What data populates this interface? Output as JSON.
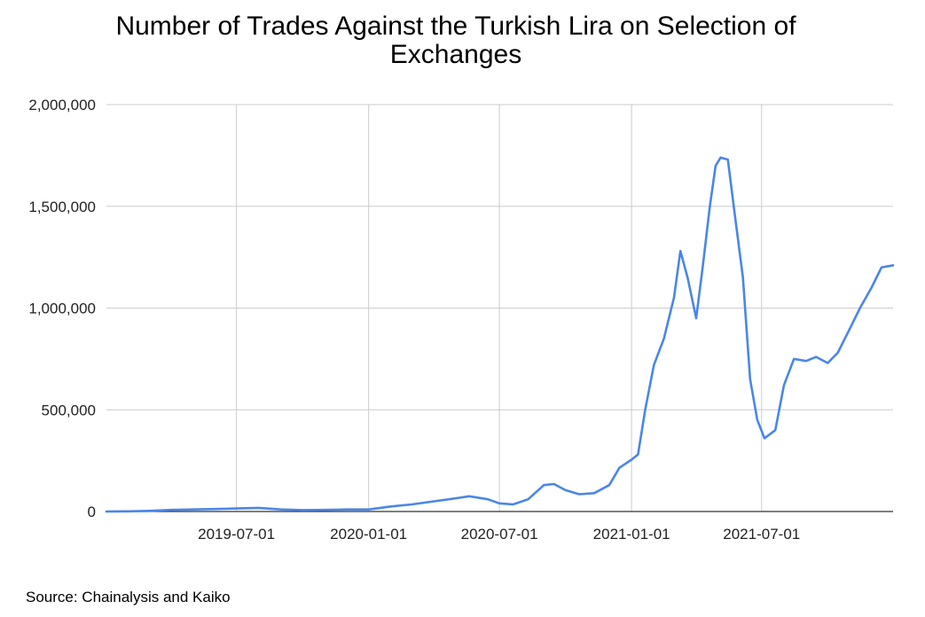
{
  "chart_data": {
    "type": "line",
    "title_line1": "Number of Trades Against the Turkish Lira on Selection of",
    "title_line2": "Exchanges",
    "xlabel": "",
    "ylabel": "",
    "source": "Source: Chainalysis and Kaiko",
    "ylim": [
      0,
      2000000
    ],
    "xlim": [
      "2019-01-01",
      "2021-12-31"
    ],
    "y_ticks": [
      {
        "value": 0,
        "label": "0"
      },
      {
        "value": 500000,
        "label": "500,000"
      },
      {
        "value": 1000000,
        "label": "1,000,000"
      },
      {
        "value": 1500000,
        "label": "1,500,000"
      },
      {
        "value": 2000000,
        "label": "2,000,000"
      }
    ],
    "x_ticks": [
      "2019-07-01",
      "2020-01-01",
      "2020-07-01",
      "2021-01-01",
      "2021-07-01"
    ],
    "grid": true,
    "line_color": "#4a86e8",
    "series": [
      {
        "x": [
          "2019-01-01",
          "2019-02-01",
          "2019-03-01",
          "2019-04-01",
          "2019-05-01",
          "2019-06-01",
          "2019-07-01",
          "2019-08-01",
          "2019-09-01",
          "2019-10-01",
          "2019-11-01",
          "2019-12-01",
          "2020-01-01",
          "2020-02-01",
          "2020-03-01",
          "2020-04-01",
          "2020-05-01",
          "2020-05-20",
          "2020-06-15",
          "2020-07-01",
          "2020-07-20",
          "2020-08-10",
          "2020-09-01",
          "2020-09-15",
          "2020-10-01",
          "2020-10-20",
          "2020-11-10",
          "2020-12-01",
          "2020-12-15",
          "2021-01-01",
          "2021-01-10",
          "2021-01-20",
          "2021-02-01",
          "2021-02-15",
          "2021-03-01",
          "2021-03-10",
          "2021-03-20",
          "2021-04-01",
          "2021-04-10",
          "2021-04-20",
          "2021-04-28",
          "2021-05-05",
          "2021-05-15",
          "2021-05-25",
          "2021-06-05",
          "2021-06-15",
          "2021-06-25",
          "2021-07-05",
          "2021-07-20",
          "2021-08-01",
          "2021-08-15",
          "2021-09-01",
          "2021-09-15",
          "2021-10-01",
          "2021-10-15",
          "2021-11-01",
          "2021-11-15",
          "2021-12-01",
          "2021-12-15",
          "2021-12-31"
        ],
        "values": [
          0,
          1000,
          3000,
          8000,
          10000,
          12000,
          15000,
          18000,
          10000,
          7000,
          8000,
          10000,
          10000,
          25000,
          35000,
          50000,
          65000,
          75000,
          60000,
          40000,
          35000,
          60000,
          130000,
          135000,
          105000,
          85000,
          90000,
          130000,
          215000,
          255000,
          280000,
          500000,
          720000,
          850000,
          1050000,
          1280000,
          1150000,
          950000,
          1200000,
          1500000,
          1700000,
          1740000,
          1730000,
          1450000,
          1150000,
          650000,
          450000,
          360000,
          400000,
          620000,
          750000,
          740000,
          760000,
          730000,
          780000,
          900000,
          1000000,
          1100000,
          1200000,
          1210000
        ]
      }
    ]
  }
}
